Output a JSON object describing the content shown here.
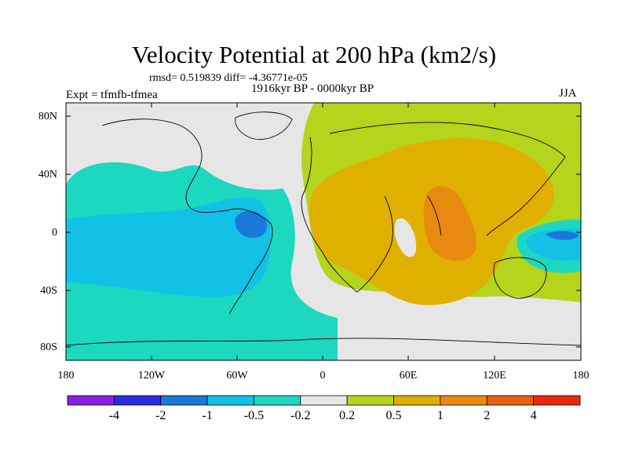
{
  "title": "Velocity Potential at 200 hPa (km2/s)",
  "stats_line": "rmsd= 0.519839 diff= -4.36771e-05",
  "left_label": "Expt = tfmfb-tfmea",
  "center_label": "1916kyr BP - 0000kyr BP",
  "right_label": "JJA",
  "lat_ticks": [
    "80N",
    "40N",
    "0",
    "40S",
    "80S"
  ],
  "lon_ticks": [
    "180",
    "120W",
    "60W",
    "0",
    "60E",
    "120E",
    "180"
  ],
  "colorbar": {
    "colors": [
      "#8a1fe6",
      "#2a2ae0",
      "#1a78d8",
      "#13c0e6",
      "#1dd8c0",
      "#e6e6e6",
      "#b5d41c",
      "#e0b000",
      "#e88a10",
      "#e86010",
      "#e82a10"
    ],
    "labels": [
      "-4",
      "-2",
      "-1",
      "-0.5",
      "-0.2",
      "0.2",
      "0.5",
      "1",
      "2",
      "4"
    ]
  },
  "colors": {
    "background_field": "#b5d41c",
    "positive_05_1": "#e0b000",
    "positive_1_2": "#e88a10",
    "neutral": "#e6e6e6",
    "negative_02_05": "#1dd8c0",
    "negative_05_1": "#13c0e6",
    "negative_1_2": "#1a78d8"
  }
}
